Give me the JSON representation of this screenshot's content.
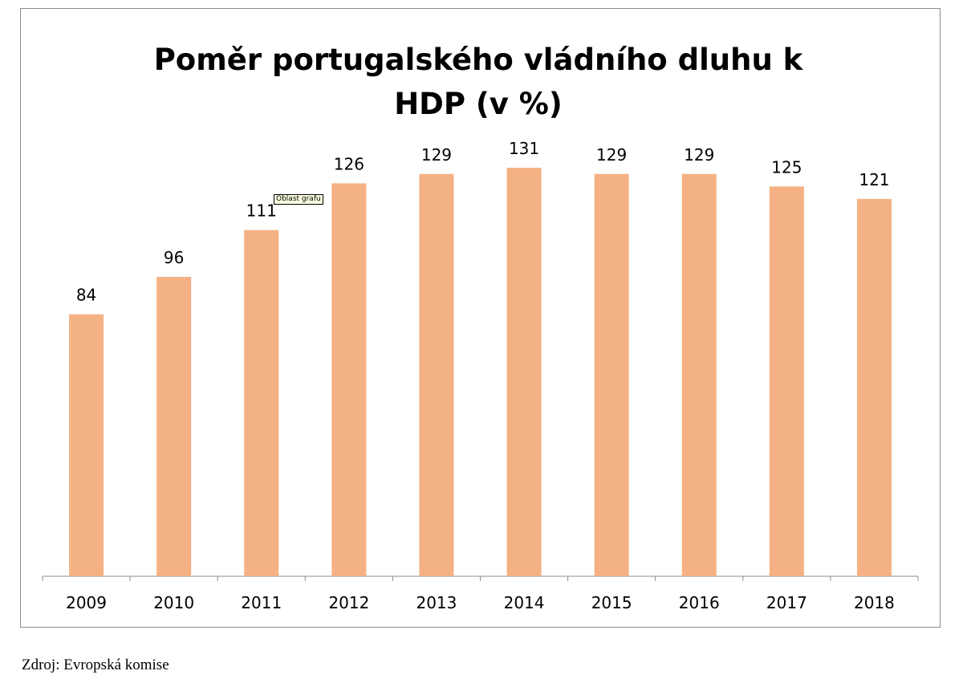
{
  "chart_data": {
    "type": "bar",
    "title": "Poměr portugalského vládního dluhu k HDP (v %)",
    "categories": [
      "2009",
      "2010",
      "2011",
      "2012",
      "2013",
      "2014",
      "2015",
      "2016",
      "2017",
      "2018"
    ],
    "values": [
      84,
      96,
      111,
      126,
      129,
      131,
      129,
      129,
      125,
      121
    ],
    "data_labels": [
      "84",
      "96",
      "111",
      "126",
      "129",
      "131",
      "129",
      "129",
      "125",
      "121"
    ],
    "bar_color": "#f4b183",
    "xlabel": "",
    "ylabel": "",
    "ylim": [
      0,
      131
    ],
    "grid": false,
    "legend": "none"
  },
  "tooltip": {
    "text": "Oblast grafu"
  },
  "source": {
    "text": "Zdroj: Evropská komise"
  }
}
